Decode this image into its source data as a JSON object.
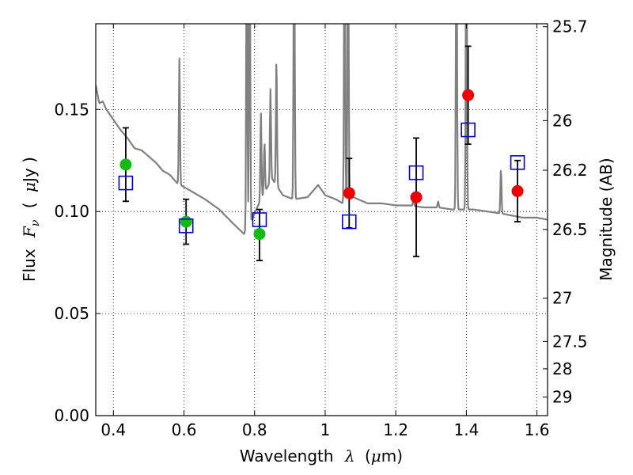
{
  "chart_data": {
    "type": "scatter",
    "xlabel": {
      "prefix": "Wavelength",
      "symbol": "λ",
      "open": "(",
      "unit_symbol": "μ",
      "unit_rest": "m)"
    },
    "ylabel": {
      "prefix": "Flux",
      "symbol": "F",
      "subscript": "ν",
      "open": "(",
      "unit_symbol": "μ",
      "unit_rest": "Jy )"
    },
    "y2label": "Magnitude (AB)",
    "xlim": [
      0.35,
      1.63
    ],
    "ylim": [
      0.0,
      0.192
    ],
    "grid": true,
    "x_ticks": [
      {
        "value": 0.4,
        "label": "0.4"
      },
      {
        "value": 0.6,
        "label": "0.6"
      },
      {
        "value": 0.8,
        "label": "0.8"
      },
      {
        "value": 1.0,
        "label": "1"
      },
      {
        "value": 1.2,
        "label": "1.2"
      },
      {
        "value": 1.4,
        "label": "1.4"
      },
      {
        "value": 1.6,
        "label": "1.6"
      }
    ],
    "y_ticks": [
      {
        "value": 0.0,
        "label": "0.00"
      },
      {
        "value": 0.05,
        "label": "0.05"
      },
      {
        "value": 0.1,
        "label": "0.10"
      },
      {
        "value": 0.15,
        "label": "0.15"
      }
    ],
    "y2_ticks": [
      {
        "magnitude": 25.7,
        "label": "25.7"
      },
      {
        "magnitude": 26.0,
        "label": "26"
      },
      {
        "magnitude": 26.2,
        "label": "26.2"
      },
      {
        "magnitude": 26.5,
        "label": "26.5"
      },
      {
        "magnitude": 27.0,
        "label": "27"
      },
      {
        "magnitude": 27.5,
        "label": "27.5"
      },
      {
        "magnitude": 28.0,
        "label": "28"
      },
      {
        "magnitude": 29.0,
        "label": "29"
      }
    ],
    "series": [
      {
        "kind": "observed",
        "marker": "circle-green",
        "color": "#11bb11",
        "points": [
          {
            "x": 0.435,
            "y": 0.123,
            "err_low": 0.105,
            "err_high": 0.141
          },
          {
            "x": 0.606,
            "y": 0.095,
            "err_low": 0.084,
            "err_high": 0.106
          },
          {
            "x": 0.814,
            "y": 0.089,
            "err_low": 0.076,
            "err_high": 0.101
          }
        ]
      },
      {
        "kind": "observed",
        "marker": "circle-red",
        "color": "#ee0000",
        "points": [
          {
            "x": 1.068,
            "y": 0.109,
            "err_low": 0.092,
            "err_high": 0.126
          },
          {
            "x": 1.258,
            "y": 0.107,
            "err_low": 0.078,
            "err_high": 0.136
          },
          {
            "x": 1.405,
            "y": 0.157,
            "err_low": 0.133,
            "err_high": 0.181
          },
          {
            "x": 1.545,
            "y": 0.11,
            "err_low": 0.095,
            "err_high": 0.125
          }
        ]
      },
      {
        "kind": "model",
        "marker": "square-blue-open",
        "color": "#0000cc",
        "points": [
          {
            "x": 0.435,
            "y": 0.114
          },
          {
            "x": 0.606,
            "y": 0.093
          },
          {
            "x": 0.814,
            "y": 0.096
          },
          {
            "x": 1.068,
            "y": 0.095
          },
          {
            "x": 1.258,
            "y": 0.119
          },
          {
            "x": 1.405,
            "y": 0.14
          },
          {
            "x": 1.545,
            "y": 0.124
          }
        ]
      }
    ],
    "spectrum": {
      "color": "#808080",
      "continuum": [
        [
          0.35,
          0.162
        ],
        [
          0.36,
          0.153
        ],
        [
          0.37,
          0.154
        ],
        [
          0.38,
          0.15
        ],
        [
          0.4,
          0.145
        ],
        [
          0.42,
          0.14
        ],
        [
          0.44,
          0.136
        ],
        [
          0.46,
          0.131
        ],
        [
          0.48,
          0.13
        ],
        [
          0.5,
          0.127
        ],
        [
          0.52,
          0.124
        ],
        [
          0.54,
          0.12
        ],
        [
          0.56,
          0.118
        ],
        [
          0.58,
          0.114
        ],
        [
          0.6,
          0.112
        ],
        [
          0.63,
          0.109
        ],
        [
          0.66,
          0.106
        ],
        [
          0.7,
          0.101
        ],
        [
          0.74,
          0.094
        ],
        [
          0.77,
          0.089
        ],
        [
          0.79,
          0.095
        ],
        [
          0.81,
          0.103
        ],
        [
          0.83,
          0.11
        ],
        [
          0.85,
          0.116
        ],
        [
          0.88,
          0.108
        ],
        [
          0.91,
          0.106
        ],
        [
          0.95,
          0.107
        ],
        [
          0.98,
          0.113
        ],
        [
          1.0,
          0.108
        ],
        [
          1.03,
          0.106
        ],
        [
          1.05,
          0.104
        ],
        [
          1.08,
          0.107
        ],
        [
          1.12,
          0.104
        ],
        [
          1.16,
          0.104
        ],
        [
          1.2,
          0.103
        ],
        [
          1.24,
          0.103
        ],
        [
          1.28,
          0.102
        ],
        [
          1.32,
          0.102
        ],
        [
          1.36,
          0.101
        ],
        [
          1.42,
          0.101
        ],
        [
          1.46,
          0.1
        ],
        [
          1.5,
          0.099
        ],
        [
          1.53,
          0.098
        ],
        [
          1.56,
          0.097
        ],
        [
          1.6,
          0.097
        ],
        [
          1.63,
          0.096
        ]
      ],
      "emission_lines": [
        {
          "x": 0.587,
          "peak": 0.175
        },
        {
          "x": 0.778,
          "peak": 0.26
        },
        {
          "x": 0.786,
          "peak": 0.26
        },
        {
          "x": 0.818,
          "peak": 0.148
        },
        {
          "x": 0.828,
          "peak": 0.134
        },
        {
          "x": 0.845,
          "peak": 0.16
        },
        {
          "x": 0.862,
          "peak": 0.175
        },
        {
          "x": 0.912,
          "peak": 0.26
        },
        {
          "x": 1.055,
          "peak": 0.26
        },
        {
          "x": 1.065,
          "peak": 0.26
        },
        {
          "x": 1.25,
          "peak": 0.106
        },
        {
          "x": 1.32,
          "peak": 0.105
        },
        {
          "x": 1.372,
          "peak": 0.26
        },
        {
          "x": 1.4,
          "peak": 0.26
        },
        {
          "x": 1.498,
          "peak": 0.121
        }
      ]
    }
  }
}
